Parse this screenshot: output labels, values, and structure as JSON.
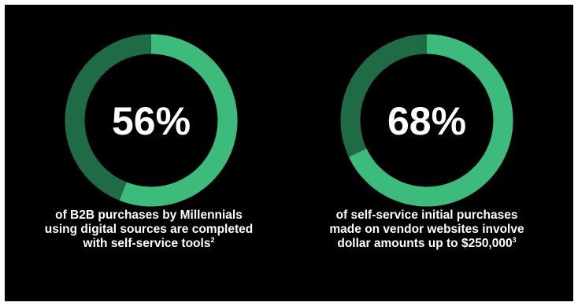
{
  "colors": {
    "background": "#000000",
    "highlight": "#3dbb7c",
    "remainder": "#1f6b45",
    "text": "#ffffff"
  },
  "chart_data": [
    {
      "type": "pie",
      "variant": "donut",
      "value_percent": 56,
      "label": "56%",
      "caption": {
        "lines": [
          "of B2B purchases by Millennials",
          "using digital sources are completed",
          "with self-service tools"
        ],
        "footnote": "2"
      }
    },
    {
      "type": "pie",
      "variant": "donut",
      "value_percent": 68,
      "label": "68%",
      "caption": {
        "lines": [
          "of self-service initial purchases",
          "made on vendor websites involve",
          "dollar amounts up to $250,000"
        ],
        "footnote": "3"
      }
    }
  ]
}
